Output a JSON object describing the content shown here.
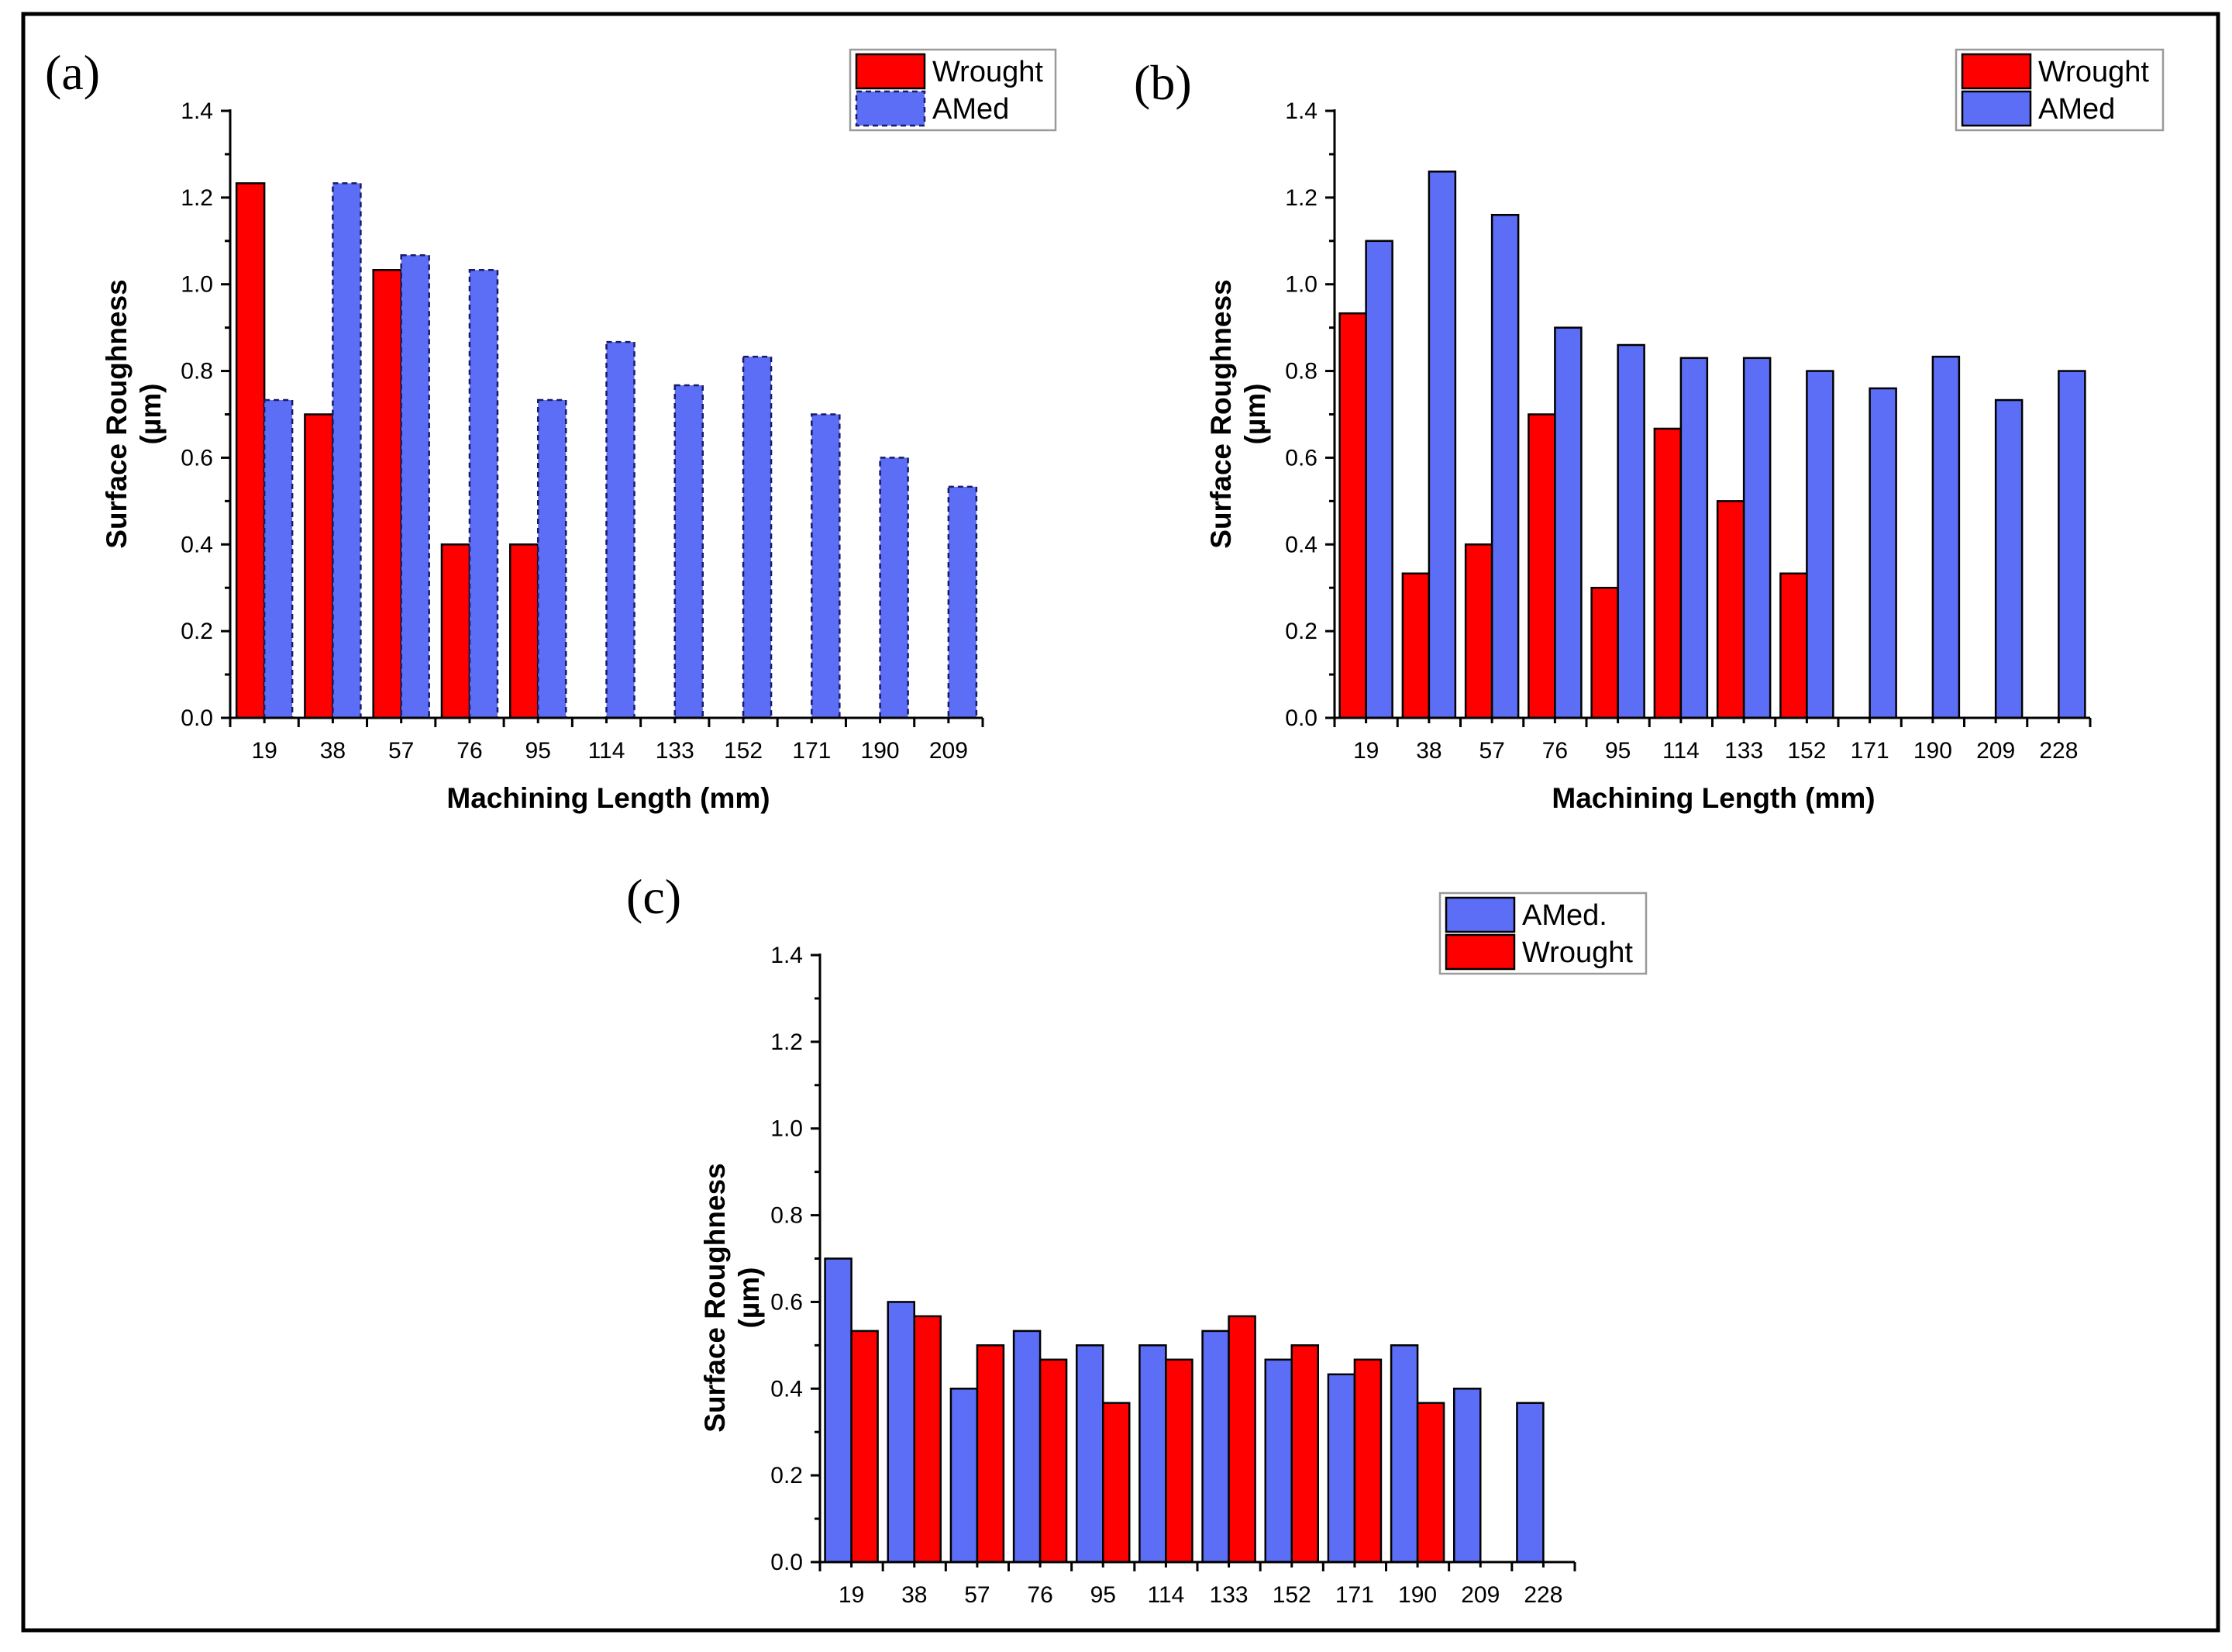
{
  "chart_data": [
    {
      "type": "bar",
      "panel_label": "(a)",
      "xlabel": "Machining Length (mm)",
      "ylabel_line1": "Surface Roughness",
      "ylabel_line2": "(µm)",
      "ylim": [
        0,
        1.4
      ],
      "yticks": [
        "0.0",
        "0.2",
        "0.4",
        "0.6",
        "0.8",
        "1.0",
        "1.2",
        "1.4"
      ],
      "categories": [
        "19",
        "38",
        "57",
        "76",
        "95",
        "114",
        "133",
        "152",
        "171",
        "190",
        "209"
      ],
      "legend_position": "top-right",
      "series": [
        {
          "name": "Wrought",
          "color": "#ff0000",
          "values": [
            1.233,
            0.7,
            1.033,
            0.4,
            0.4,
            null,
            null,
            null,
            null,
            null,
            null
          ]
        },
        {
          "name": "AMed",
          "color": "#5b6ef5",
          "dashed": true,
          "values": [
            0.733,
            1.233,
            1.067,
            1.033,
            0.733,
            0.867,
            0.767,
            0.833,
            0.7,
            0.6,
            0.533
          ]
        }
      ]
    },
    {
      "type": "bar",
      "panel_label": "(b)",
      "xlabel": "Machining Length (mm)",
      "ylabel_line1": "Surface Roughness",
      "ylabel_line2": "(µm)",
      "ylim": [
        0,
        1.4
      ],
      "yticks": [
        "0.0",
        "0.2",
        "0.4",
        "0.6",
        "0.8",
        "1.0",
        "1.2",
        "1.4"
      ],
      "categories": [
        "19",
        "38",
        "57",
        "76",
        "95",
        "114",
        "133",
        "152",
        "171",
        "190",
        "209",
        "228"
      ],
      "legend_position": "top-right",
      "series": [
        {
          "name": "Wrought",
          "color": "#ff0000",
          "values": [
            0.933,
            0.333,
            0.4,
            0.7,
            0.3,
            0.667,
            0.5,
            0.333,
            null,
            null,
            null,
            null
          ]
        },
        {
          "name": "AMed",
          "color": "#5b6ef5",
          "values": [
            1.1,
            1.26,
            1.16,
            0.9,
            0.86,
            0.83,
            0.83,
            0.8,
            0.76,
            0.833,
            0.733,
            0.8
          ]
        }
      ]
    },
    {
      "type": "bar",
      "panel_label": "(c)",
      "xlabel": "",
      "ylabel_line1": "Surface Roughness",
      "ylabel_line2": "(µm)",
      "ylim": [
        0,
        1.4
      ],
      "yticks": [
        "0.0",
        "0.2",
        "0.4",
        "0.6",
        "0.8",
        "1.0",
        "1.2",
        "1.4"
      ],
      "categories": [
        "19",
        "38",
        "57",
        "76",
        "95",
        "114",
        "133",
        "152",
        "171",
        "190",
        "209",
        "228"
      ],
      "legend_position": "top-right",
      "series": [
        {
          "name": "AMed.",
          "color": "#5b6ef5",
          "values": [
            0.7,
            0.6,
            0.4,
            0.533,
            0.5,
            0.5,
            0.533,
            0.467,
            0.433,
            0.5,
            0.4,
            0.367
          ]
        },
        {
          "name": "Wrought",
          "color": "#ff0000",
          "values": [
            0.533,
            0.567,
            0.5,
            0.467,
            0.367,
            0.467,
            0.567,
            0.5,
            0.467,
            0.367,
            null,
            null
          ]
        }
      ]
    }
  ]
}
